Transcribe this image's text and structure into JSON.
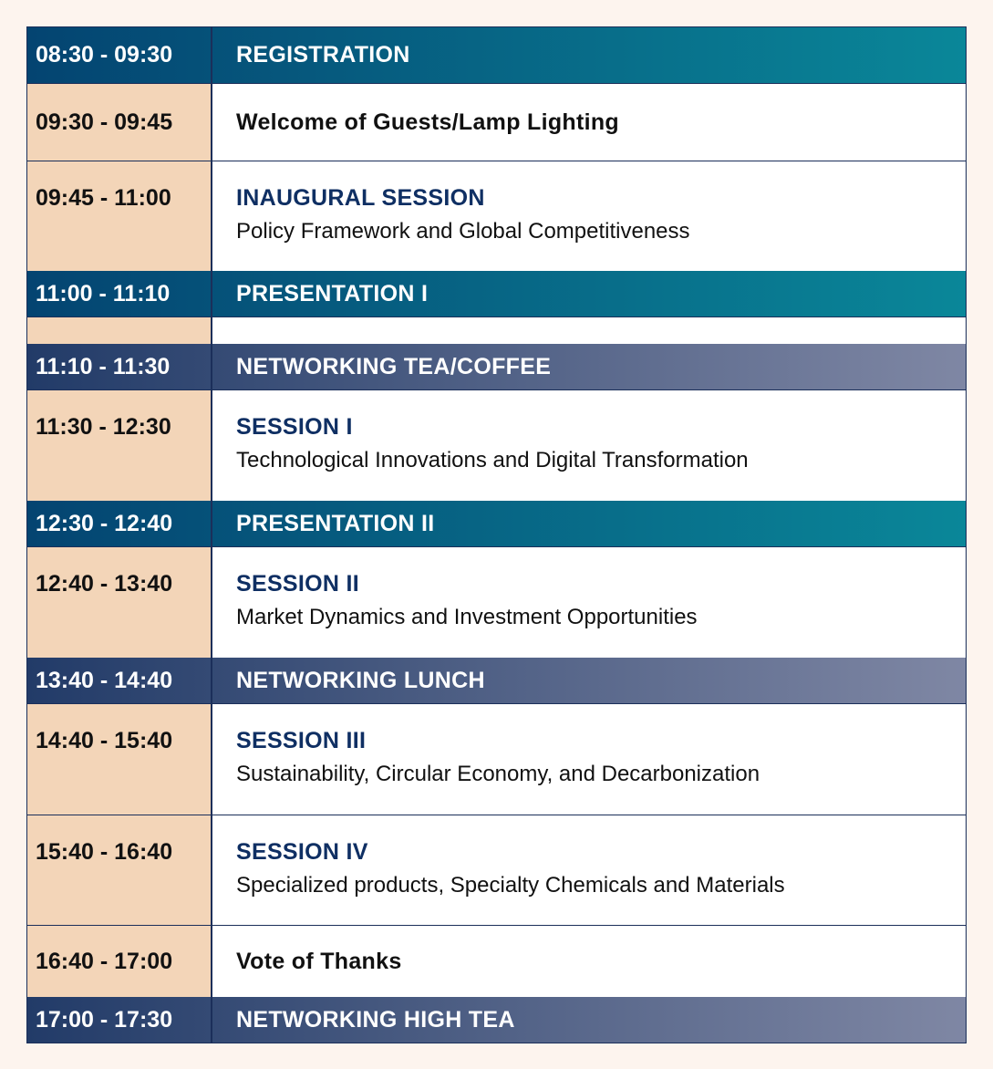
{
  "colors": {
    "band_teal_start": "#044471",
    "band_teal_end": "#0a8799",
    "band_gray_start": "#223b68",
    "band_gray_end": "#7f87a4",
    "time_cell": "#f3d5b8",
    "session_title": "#0f2f63",
    "background": "#fdf4ee"
  },
  "agenda": [
    {
      "time": "08:30 - 09:30",
      "title": "REGISTRATION",
      "subtitle": "",
      "style": "teal"
    },
    {
      "time": "09:30 - 09:45",
      "title": "Welcome of Guests/Lamp Lighting",
      "subtitle": "",
      "style": "plain"
    },
    {
      "time": "09:45 - 11:00",
      "title": "INAUGURAL SESSION",
      "subtitle": "Policy Framework and Global Competitiveness",
      "style": "session"
    },
    {
      "time": "11:00 - 11:10",
      "title": "PRESENTATION I",
      "subtitle": "",
      "style": "teal"
    },
    {
      "time": "",
      "title": "",
      "subtitle": "",
      "style": "blank"
    },
    {
      "time": "11:10 - 11:30",
      "title": "NETWORKING TEA/COFFEE",
      "subtitle": "",
      "style": "gray"
    },
    {
      "time": "11:30 - 12:30",
      "title": "SESSION I",
      "subtitle": "Technological Innovations and Digital Transformation",
      "style": "session"
    },
    {
      "time": "12:30 - 12:40",
      "title": "PRESENTATION II",
      "subtitle": "",
      "style": "teal"
    },
    {
      "time": "12:40 - 13:40",
      "title": "SESSION II",
      "subtitle": "Market Dynamics and Investment Opportunities",
      "style": "session"
    },
    {
      "time": "13:40 - 14:40",
      "title": "NETWORKING LUNCH",
      "subtitle": "",
      "style": "gray"
    },
    {
      "time": "14:40 - 15:40",
      "title": "SESSION III",
      "subtitle": "Sustainability, Circular Economy, and Decarbonization",
      "style": "session"
    },
    {
      "time": "15:40 - 16:40",
      "title": "SESSION IV",
      "subtitle": "Specialized products, Specialty Chemicals and Materials",
      "style": "session"
    },
    {
      "time": "16:40 - 17:00",
      "title": "Vote of Thanks",
      "subtitle": "",
      "style": "plain"
    },
    {
      "time": "17:00 - 17:30",
      "title": "NETWORKING HIGH TEA",
      "subtitle": "",
      "style": "gray"
    }
  ]
}
